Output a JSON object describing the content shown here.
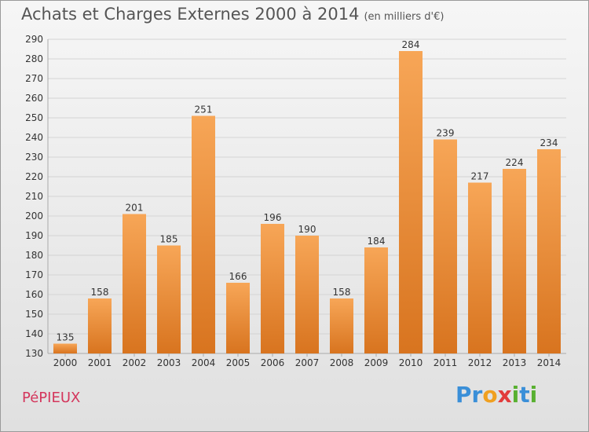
{
  "header": {
    "title": "Achats et Charges Externes 2000 à 2014",
    "subtitle": "(en milliers d'€)"
  },
  "footer": {
    "place": "PéPIEUX",
    "logo": [
      "P",
      "r",
      "o",
      "x",
      "i",
      "t",
      "i"
    ],
    "logo_colors": [
      "#3a8fd8",
      "#3a8fd8",
      "#f0a020",
      "#e23b3b",
      "#58b030",
      "#3a8fd8",
      "#58b030"
    ]
  },
  "colors": {
    "bar_light": "#f7a657",
    "bar_dark": "#d8741f",
    "grid": "#d4d4d4"
  },
  "chart_data": {
    "type": "bar",
    "title": "Achats et Charges Externes 2000 à 2014",
    "subtitle": "(en milliers d'€)",
    "categories": [
      "2000",
      "2001",
      "2002",
      "2003",
      "2004",
      "2005",
      "2006",
      "2007",
      "2008",
      "2009",
      "2010",
      "2011",
      "2012",
      "2013",
      "2014"
    ],
    "values": [
      135,
      158,
      201,
      185,
      251,
      166,
      196,
      190,
      158,
      184,
      284,
      239,
      217,
      224,
      234
    ],
    "ylim": [
      130,
      290
    ],
    "yticks": [
      130,
      140,
      150,
      160,
      170,
      180,
      190,
      200,
      210,
      220,
      230,
      240,
      250,
      260,
      270,
      280,
      290
    ],
    "grid": true,
    "xlabel": "",
    "ylabel": ""
  }
}
